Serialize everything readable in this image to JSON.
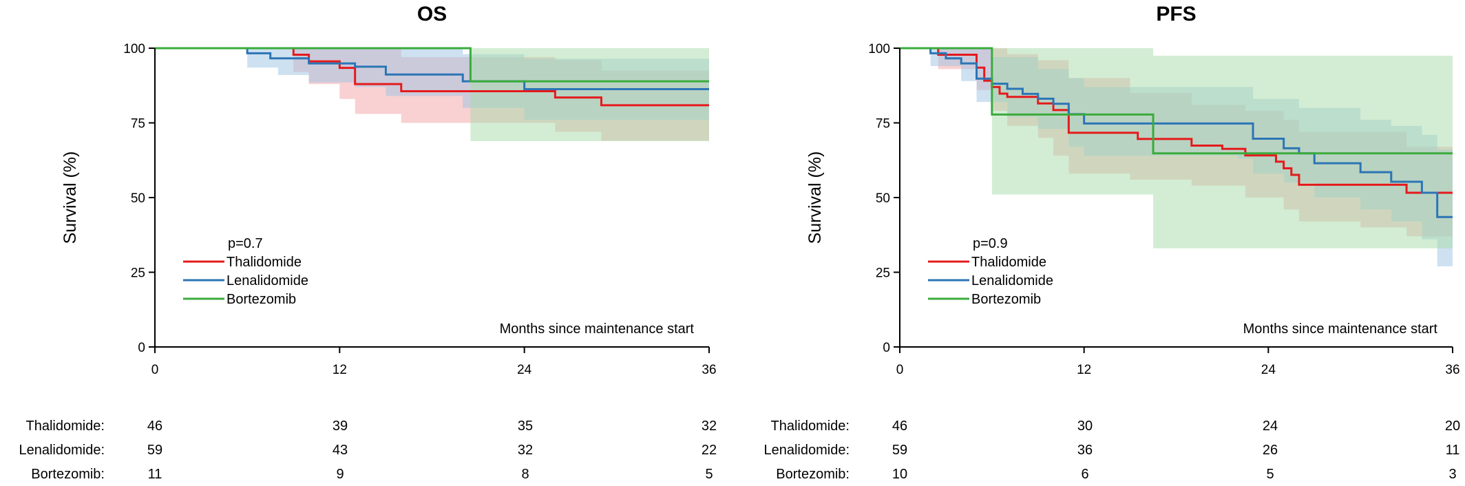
{
  "chart_data": [
    {
      "type": "line",
      "subtype": "kaplan-meier",
      "title": "OS",
      "ylabel": "Survival (%)",
      "xlabel": "Months since maintenance start",
      "xlim": [
        0,
        36
      ],
      "ylim": [
        0,
        100
      ],
      "xticks": [
        0,
        12,
        24,
        36
      ],
      "yticks": [
        0,
        25,
        50,
        75,
        100
      ],
      "pvalue": "p=0.7",
      "legend_position": "left",
      "series": [
        {
          "name": "Thalidomide",
          "color": "#e41a1c",
          "band_color": "#f4a3a5",
          "steps": [
            [
              0,
              100
            ],
            [
              9,
              97.8
            ],
            [
              10,
              95.6
            ],
            [
              12,
              93.4
            ],
            [
              13,
              88
            ],
            [
              16,
              85.6
            ],
            [
              24,
              85.6
            ],
            [
              26,
              83.5
            ],
            [
              29,
              80.9
            ],
            [
              36,
              80.9
            ]
          ],
          "upper": [
            [
              9,
              100
            ],
            [
              12,
              100
            ],
            [
              16,
              97
            ],
            [
              26,
              96
            ],
            [
              29,
              92.5
            ],
            [
              36,
              92.5
            ]
          ],
          "lower": [
            [
              9,
              92
            ],
            [
              10,
              88
            ],
            [
              12,
              83
            ],
            [
              13,
              78
            ],
            [
              16,
              75
            ],
            [
              24,
              75
            ],
            [
              26,
              72
            ],
            [
              29,
              69
            ],
            [
              36,
              69
            ]
          ]
        },
        {
          "name": "Lenalidomide",
          "color": "#2b75b5",
          "band_color": "#9ec3e4",
          "steps": [
            [
              0,
              100
            ],
            [
              6,
              98.3
            ],
            [
              7.5,
              96.6
            ],
            [
              10,
              94.9
            ],
            [
              13,
              93.8
            ],
            [
              15,
              91.2
            ],
            [
              20,
              88.9
            ],
            [
              24,
              86.3
            ],
            [
              36,
              86.3
            ]
          ],
          "upper": [
            [
              6,
              100
            ],
            [
              15,
              100
            ],
            [
              20,
              98
            ],
            [
              24,
              96.5
            ],
            [
              36,
              96.5
            ]
          ],
          "lower": [
            [
              6,
              93.5
            ],
            [
              8,
              91
            ],
            [
              10,
              88.5
            ],
            [
              13,
              87
            ],
            [
              15,
              84
            ],
            [
              20,
              80
            ],
            [
              24,
              76
            ],
            [
              36,
              76
            ]
          ]
        },
        {
          "name": "Bortezomib",
          "color": "#3aab3c",
          "band_color": "#a8dba9",
          "steps": [
            [
              0,
              100
            ],
            [
              20.5,
              100
            ],
            [
              20.5,
              88.9
            ],
            [
              36,
              88.9
            ]
          ],
          "upper": [
            [
              20.5,
              100
            ],
            [
              36,
              100
            ]
          ],
          "lower": [
            [
              20.5,
              68.9
            ],
            [
              36,
              68.9
            ]
          ]
        }
      ],
      "risk_table": {
        "at": [
          0,
          12,
          24,
          36
        ],
        "rows": [
          {
            "label": "Thalidomide:",
            "values": [
              "46",
              "39",
              "35",
              "32"
            ]
          },
          {
            "label": "Lenalidomide:",
            "values": [
              "59",
              "43",
              "32",
              "22"
            ]
          },
          {
            "label": "Bortezomib:",
            "values": [
              "11",
              "9",
              "8",
              "5"
            ]
          }
        ]
      }
    },
    {
      "type": "line",
      "subtype": "kaplan-meier",
      "title": "PFS",
      "ylabel": "Survival (%)",
      "xlabel": "Months since maintenance start",
      "xlim": [
        0,
        36
      ],
      "ylim": [
        0,
        100
      ],
      "xticks": [
        0,
        12,
        24,
        36
      ],
      "yticks": [
        0,
        25,
        50,
        75,
        100
      ],
      "pvalue": "p=0.9",
      "legend_position": "left",
      "series": [
        {
          "name": "Thalidomide",
          "color": "#e41a1c",
          "band_color": "#f4a3a5",
          "steps": [
            [
              0,
              100
            ],
            [
              2.5,
              97.8
            ],
            [
              5,
              93.5
            ],
            [
              5.5,
              89.1
            ],
            [
              6,
              87
            ],
            [
              6.5,
              84.8
            ],
            [
              7,
              83.7
            ],
            [
              9,
              81.5
            ],
            [
              10,
              79.3
            ],
            [
              11,
              71.7
            ],
            [
              15,
              71.7
            ],
            [
              15.5,
              69.6
            ],
            [
              19,
              67.4
            ],
            [
              21,
              66.3
            ],
            [
              22.5,
              64.1
            ],
            [
              24.5,
              62
            ],
            [
              25,
              59.8
            ],
            [
              25.5,
              57.6
            ],
            [
              26,
              54.3
            ],
            [
              30,
              54.3
            ],
            [
              33,
              51.6
            ],
            [
              36,
              51.6
            ]
          ],
          "upper": [
            [
              2.5,
              100
            ],
            [
              7,
              98
            ],
            [
              9,
              96
            ],
            [
              11,
              90
            ],
            [
              15,
              85
            ],
            [
              19,
              81
            ],
            [
              22.5,
              79
            ],
            [
              25,
              76
            ],
            [
              26,
              72
            ],
            [
              33,
              67
            ],
            [
              36,
              67
            ]
          ],
          "lower": [
            [
              2.5,
              93
            ],
            [
              5,
              86
            ],
            [
              6,
              79
            ],
            [
              7,
              74
            ],
            [
              9,
              70
            ],
            [
              10,
              64
            ],
            [
              11,
              58
            ],
            [
              15,
              56
            ],
            [
              19,
              54
            ],
            [
              22.5,
              50
            ],
            [
              25,
              46
            ],
            [
              26,
              42
            ],
            [
              30,
              40
            ],
            [
              33,
              37
            ],
            [
              36,
              37
            ]
          ]
        },
        {
          "name": "Lenalidomide",
          "color": "#2b75b5",
          "band_color": "#9ec3e4",
          "steps": [
            [
              0,
              100
            ],
            [
              2,
              98.3
            ],
            [
              3,
              96.6
            ],
            [
              4,
              94.9
            ],
            [
              5,
              89.8
            ],
            [
              6,
              88.1
            ],
            [
              7,
              86.4
            ],
            [
              8,
              84.7
            ],
            [
              9,
              83.1
            ],
            [
              10,
              81.4
            ],
            [
              11,
              77.9
            ],
            [
              12,
              74.8
            ],
            [
              22,
              74.8
            ],
            [
              23,
              69.7
            ],
            [
              25,
              66.5
            ],
            [
              26,
              64.8
            ],
            [
              27,
              61.5
            ],
            [
              30,
              58.5
            ],
            [
              32,
              55.3
            ],
            [
              34,
              51.6
            ],
            [
              35,
              43.5
            ],
            [
              36,
              43.5
            ]
          ],
          "upper": [
            [
              2,
              100
            ],
            [
              6,
              97
            ],
            [
              9,
              93
            ],
            [
              11,
              90
            ],
            [
              12,
              87
            ],
            [
              22,
              87
            ],
            [
              23,
              83
            ],
            [
              26,
              80
            ],
            [
              30,
              76
            ],
            [
              32,
              74
            ],
            [
              34,
              71
            ],
            [
              35,
              66
            ],
            [
              36,
              66
            ]
          ],
          "lower": [
            [
              2,
              94
            ],
            [
              4,
              89
            ],
            [
              5,
              82
            ],
            [
              7,
              77
            ],
            [
              9,
              73
            ],
            [
              11,
              67
            ],
            [
              12,
              64
            ],
            [
              22,
              63
            ],
            [
              23,
              58
            ],
            [
              25,
              55
            ],
            [
              27,
              50
            ],
            [
              30,
              46
            ],
            [
              32,
              42
            ],
            [
              34,
              36
            ],
            [
              35,
              27
            ],
            [
              36,
              27
            ]
          ]
        },
        {
          "name": "Bortezomib",
          "color": "#3aab3c",
          "band_color": "#a8dba9",
          "steps": [
            [
              0,
              100
            ],
            [
              6,
              100
            ],
            [
              6,
              77.8
            ],
            [
              16.5,
              77.8
            ],
            [
              16.5,
              64.8
            ],
            [
              36,
              64.8
            ]
          ],
          "upper": [
            [
              6,
              100
            ],
            [
              16.5,
              97.5
            ],
            [
              36,
              97.5
            ]
          ],
          "lower": [
            [
              6,
              51
            ],
            [
              16.5,
              33
            ],
            [
              36,
              33
            ]
          ]
        }
      ],
      "risk_table": {
        "at": [
          0,
          12,
          24,
          36
        ],
        "rows": [
          {
            "label": "Thalidomide:",
            "values": [
              "46",
              "30",
              "24",
              "20"
            ]
          },
          {
            "label": "Lenalidomide:",
            "values": [
              "59",
              "36",
              "26",
              "11"
            ]
          },
          {
            "label": "Bortezomib:",
            "values": [
              "10",
              "6",
              "5",
              "3"
            ]
          }
        ]
      }
    }
  ]
}
